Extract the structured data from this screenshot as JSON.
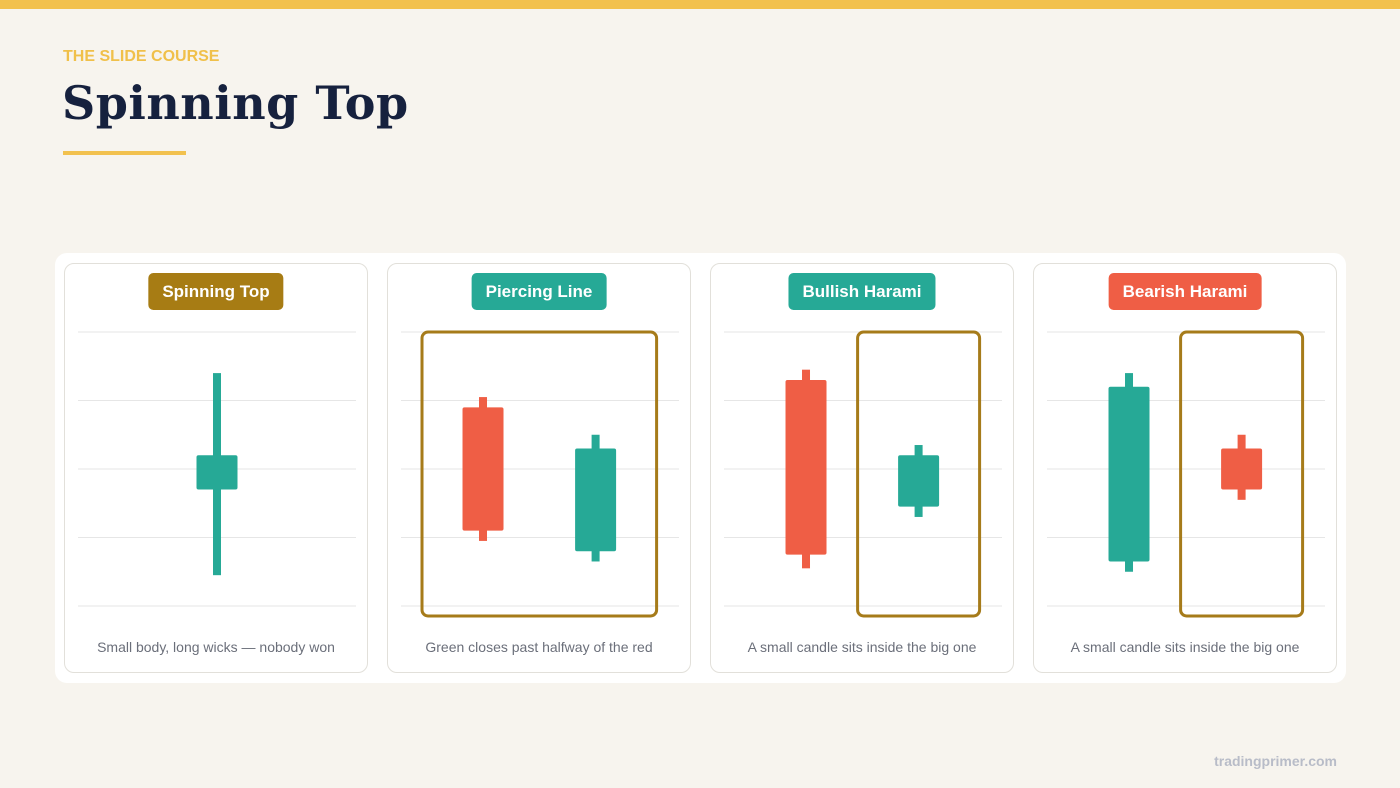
{
  "header": {
    "eyebrow": "THE SLIDE COURSE",
    "title": "Spinning Top"
  },
  "up_color": "#26a996",
  "down_color": "#ef5e45",
  "ylim": [
    0,
    4
  ],
  "yticks": [
    0,
    1,
    2,
    3,
    4
  ],
  "panels": [
    {
      "label": "Spinning Top",
      "badge_color": "#a77c14",
      "caption": "Small body, long wicks — nobody won",
      "candles": [
        {
          "open": 1.7,
          "high": 3.4,
          "low": 0.45,
          "close": 2.2
        }
      ]
    },
    {
      "label": "Piercing Line",
      "badge_color": "#26a996",
      "caption": "Green closes past halfway of the red",
      "candles": [
        {
          "open": 2.9,
          "high": 3.05,
          "low": 0.95,
          "close": 1.1
        },
        {
          "open": 0.8,
          "high": 2.5,
          "low": 0.65,
          "close": 2.3
        }
      ]
    },
    {
      "label": "Bullish Harami",
      "badge_color": "#26a996",
      "caption": "A small candle sits inside the big one",
      "candles": [
        {
          "open": 3.3,
          "high": 3.45,
          "low": 0.55,
          "close": 0.75
        },
        {
          "open": 1.45,
          "high": 2.35,
          "low": 1.3,
          "close": 2.2
        }
      ]
    },
    {
      "label": "Bearish Harami",
      "badge_color": "#ef5e45",
      "caption": "A small candle sits inside the big one",
      "candles": [
        {
          "open": 0.65,
          "high": 3.4,
          "low": 0.5,
          "close": 3.2
        },
        {
          "open": 2.3,
          "high": 2.5,
          "low": 1.55,
          "close": 1.7
        }
      ]
    }
  ],
  "footer": "tradingprimer.com"
}
